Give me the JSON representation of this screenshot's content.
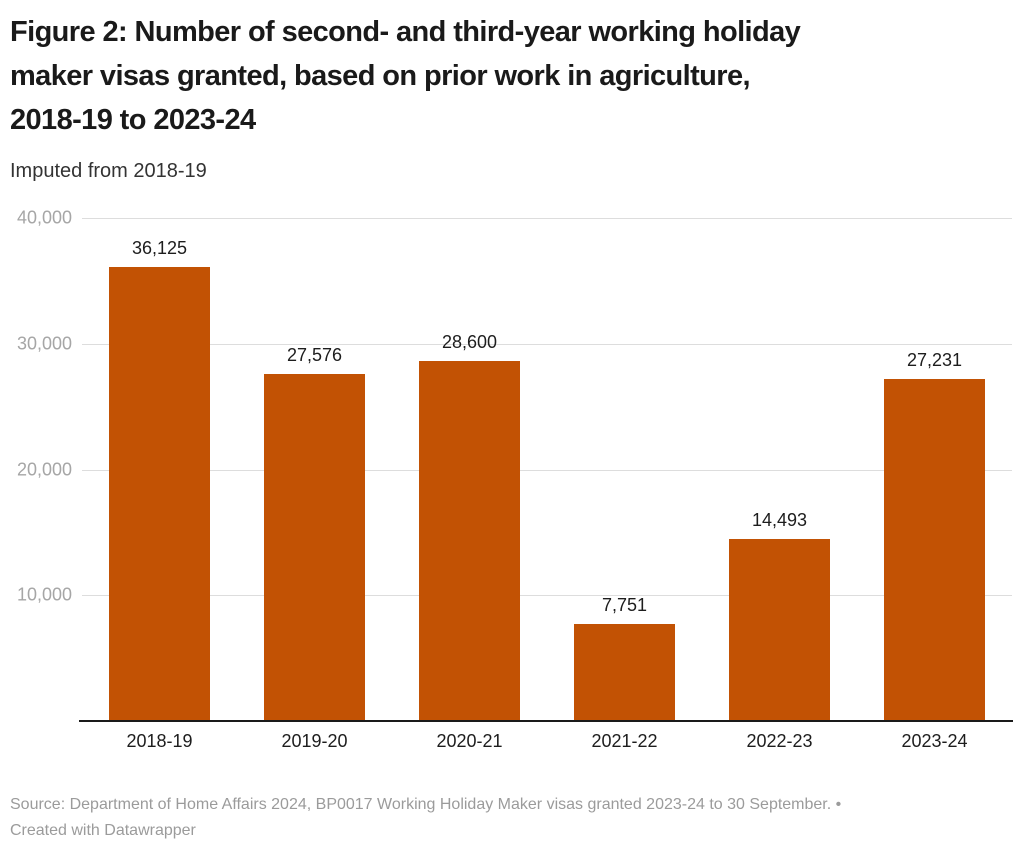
{
  "header": {
    "title_lines": [
      "Figure 2: Number of second- and third-year working holiday",
      "maker visas granted, based on prior work in agriculture,",
      "2018-19 to 2023-24"
    ],
    "subtitle": "Imputed from 2018-19"
  },
  "chart_data": {
    "type": "bar",
    "title": "Figure 2: Number of second- and third-year working holiday maker visas granted, based on prior work in agriculture, 2018-19 to 2023-24",
    "subtitle": "Imputed from 2018-19",
    "categories": [
      "2018-19",
      "2019-20",
      "2020-21",
      "2021-22",
      "2022-23",
      "2023-24"
    ],
    "values": [
      36125,
      27576,
      28600,
      7751,
      14493,
      27231
    ],
    "value_labels": [
      "36,125",
      "27,576",
      "28,600",
      "7,751",
      "14,493",
      "27,231"
    ],
    "xlabel": "",
    "ylabel": "",
    "ylim": [
      0,
      40000
    ],
    "yticks": [
      10000,
      20000,
      30000,
      40000
    ],
    "ytick_labels": [
      "10,000",
      "20,000",
      "30,000",
      "40,000"
    ],
    "grid": "horizontal",
    "legend": "none",
    "bar_color": "#c25204"
  },
  "footer": {
    "source_line": "Source: Department of Home Affairs 2024, BP0017 Working Holiday Maker visas granted 2023-24 to 30 September. •",
    "created_line": "Created with Datawrapper"
  },
  "colors": {
    "background": "#ffffff",
    "title": "#1a1a1a",
    "subtitle": "#333333",
    "bar": "#c25204",
    "gridline": "#dddddd",
    "axis_line": "#1a1a1a",
    "y_tick_label": "#a6a6a6",
    "data_label": "#1d1d1d",
    "source_text": "#9b9b9b"
  }
}
